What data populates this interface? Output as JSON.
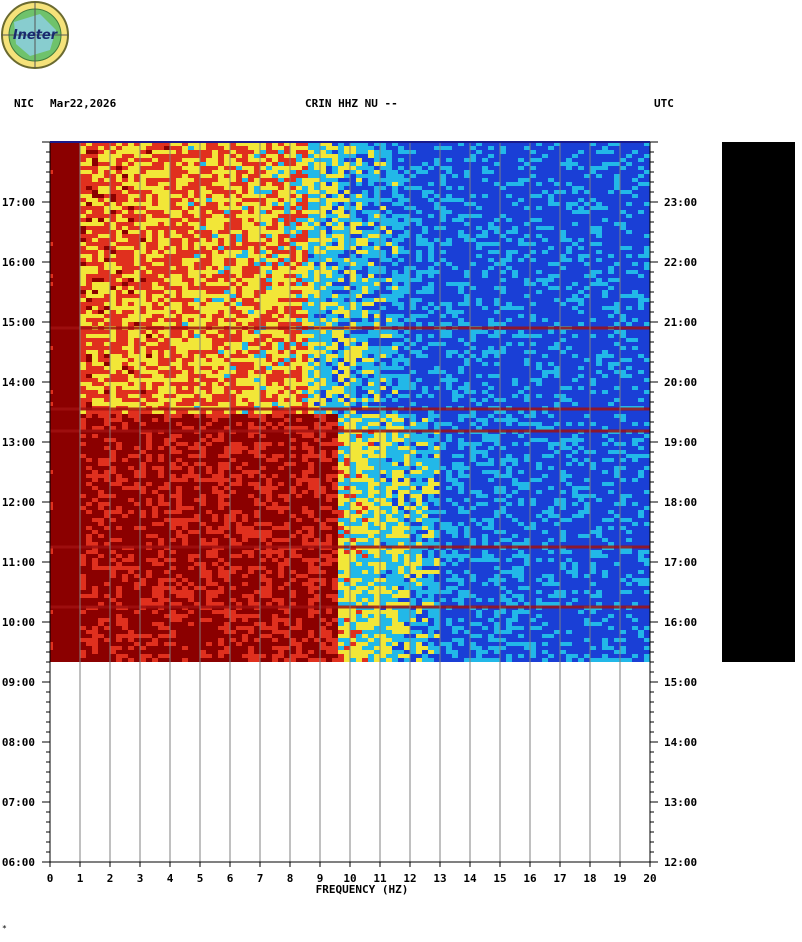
{
  "header": {
    "network": "NIC",
    "date": "Mar22,2026",
    "station": "CRIN HHZ NU --",
    "timezone": "UTC"
  },
  "logo": {
    "text": "Ineter"
  },
  "footnote": "*",
  "colors": {
    "low": "#1a3fd6",
    "mid_low": "#22b8e8",
    "mid": "#f2e638",
    "high": "#e0301e",
    "max": "#8b0000",
    "grid": "#808080",
    "blank_panel": "#000000"
  },
  "chart_data": {
    "type": "heatmap",
    "title": "",
    "xlabel": "FREQUENCY (HZ)",
    "ylabel": "",
    "xlim": [
      0,
      20
    ],
    "x_ticks": [
      "0",
      "1",
      "2",
      "3",
      "4",
      "5",
      "6",
      "7",
      "8",
      "9",
      "10",
      "11",
      "12",
      "13",
      "14",
      "15",
      "16",
      "17",
      "18",
      "19",
      "20"
    ],
    "left_time_ticks": [
      "17:00",
      "16:00",
      "15:00",
      "14:00",
      "13:00",
      "12:00",
      "11:00",
      "10:00",
      "09:00",
      "08:00",
      "07:00",
      "06:00"
    ],
    "right_time_ticks": [
      "23:00",
      "22:00",
      "21:00",
      "20:00",
      "19:00",
      "18:00",
      "17:00",
      "16:00",
      "15:00",
      "14:00",
      "13:00",
      "12:00"
    ],
    "time_range_local": [
      "06:00",
      "18:00"
    ],
    "data_end_local": "09:20",
    "utc_offset_hours": 6,
    "grid": true,
    "energy_bands": [
      {
        "from_local": "13:30",
        "to_local": "09:20",
        "freq_hz": [
          0,
          9.5
        ],
        "level": "max"
      },
      {
        "from_local": "18:00",
        "to_local": "13:30",
        "freq_hz": [
          0,
          8.5
        ],
        "level": "high"
      },
      {
        "from_local": "18:00",
        "to_local": "09:20",
        "freq_hz": [
          9.5,
          13
        ],
        "level": "mid_low"
      },
      {
        "from_local": "18:00",
        "to_local": "09:20",
        "freq_hz": [
          13,
          20
        ],
        "level": "low"
      }
    ],
    "horizontal_streaks_local": [
      "14:54",
      "13:33",
      "13:11",
      "11:15",
      "10:15"
    ]
  }
}
